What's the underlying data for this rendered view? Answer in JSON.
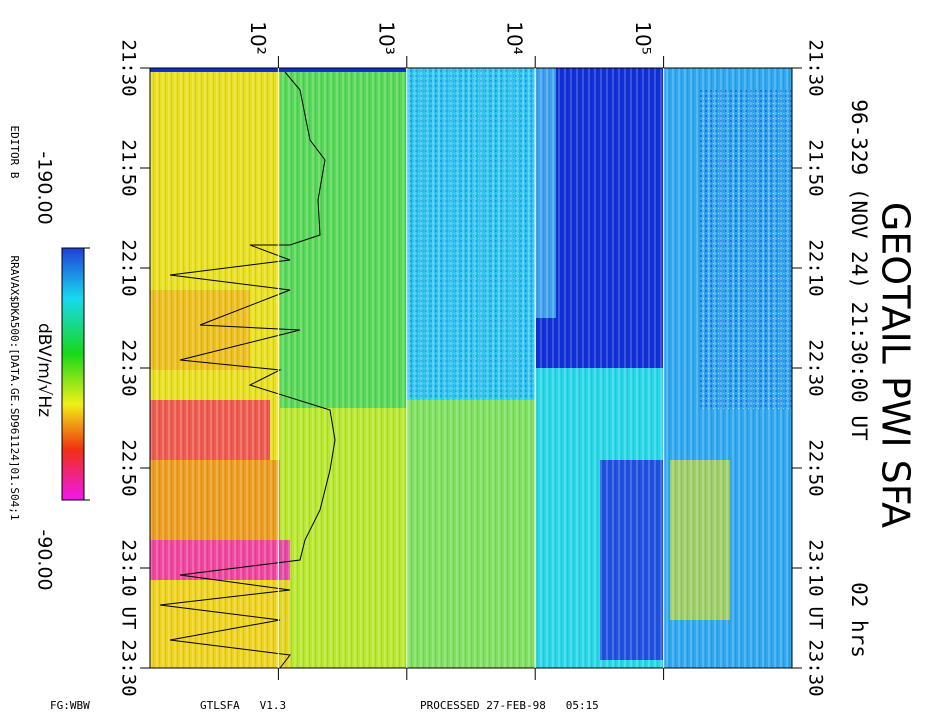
{
  "header": {
    "title": "GEOTAIL PWI SFA",
    "subtitle": "96-329 (NOV 24) 21:30:00 UT",
    "duration": "02 hrs"
  },
  "chart_data": {
    "type": "spectrogram",
    "xscale": "log",
    "xlim": [
      10,
      1000000
    ],
    "xticks": [
      {
        "value": 100,
        "label": "10²"
      },
      {
        "value": 1000,
        "label": "10³"
      },
      {
        "value": 10000,
        "label": "10⁴"
      },
      {
        "value": 100000,
        "label": "10⁵"
      }
    ],
    "yticks": [
      "21:30",
      "21:50",
      "22:10",
      "22:30",
      "22:50",
      "23:10",
      "23:30"
    ],
    "y_unit": "UT",
    "colorbar": {
      "label": "dBV/m/√Hz",
      "ticks": [
        {
          "value": -190,
          "label": "-190.00"
        },
        {
          "value": -90,
          "label": "-90.00"
        }
      ]
    }
  },
  "side": {
    "editor": "EDITOR B",
    "file": "RRAVAX$DKA500:[DATA.GE.SD961124]01.S04;1"
  },
  "footer": {
    "mode": "FG:WBW",
    "program": "GTLSFA   V1.3",
    "processed": "PROCESSED 27-FEB-98   05:15"
  }
}
